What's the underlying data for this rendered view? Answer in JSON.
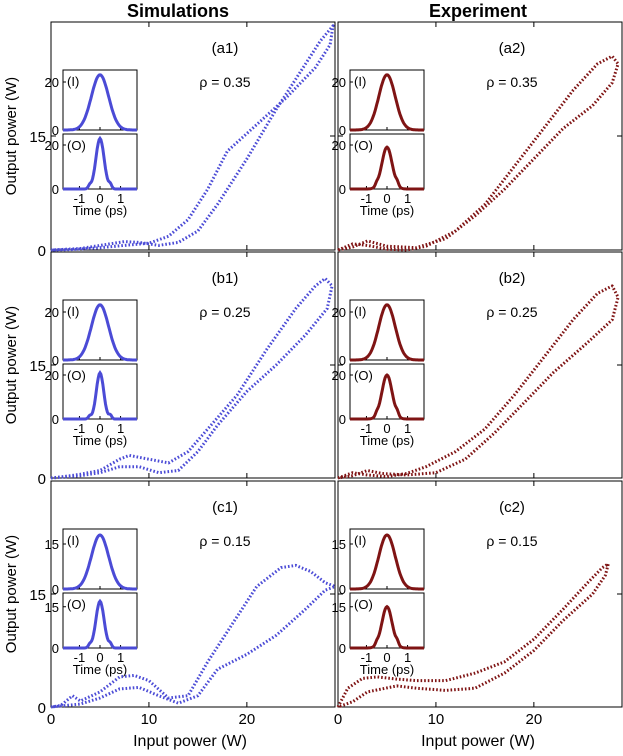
{
  "headers": {
    "left": "Simulations",
    "right": "Experiment"
  },
  "axis_labels": {
    "ylabel": "Output power (W)",
    "xlabel": "Input power (W)",
    "inset_xlabel": "Time (ps)"
  },
  "colors": {
    "simulation": "#4b4bd6",
    "experiment": "#7f1414",
    "axes": "#000000"
  },
  "chart_data": [
    {
      "id": "a1",
      "type": "line",
      "panel_label": "(a1)",
      "rho": "ρ = 0.35",
      "series_color": "simulation",
      "xlim": [
        0,
        29
      ],
      "ylim": [
        0,
        30
      ],
      "xticks": [
        0,
        10,
        20
      ],
      "yticks": [
        0,
        15
      ],
      "loop_path": [
        [
          0,
          0
        ],
        [
          3,
          0.2
        ],
        [
          6,
          0.8
        ],
        [
          7.5,
          1.1
        ],
        [
          9,
          1
        ],
        [
          11,
          0.6
        ],
        [
          13,
          1
        ],
        [
          15,
          2.5
        ],
        [
          17,
          6
        ],
        [
          20,
          12
        ],
        [
          23,
          18.5
        ],
        [
          25.5,
          23.5
        ],
        [
          27.5,
          27.5
        ],
        [
          28.8,
          29.5
        ],
        [
          28.5,
          27
        ],
        [
          27,
          24
        ],
        [
          24,
          20
        ],
        [
          21,
          16.5
        ],
        [
          18,
          13
        ],
        [
          16,
          8
        ],
        [
          14,
          4
        ],
        [
          12,
          1.8
        ],
        [
          10,
          0.9
        ],
        [
          7.5,
          0.6
        ],
        [
          5,
          0.3
        ],
        [
          2,
          0.05
        ],
        [
          0,
          0
        ]
      ],
      "inset_in": {
        "ylim": [
          0,
          25
        ],
        "yticks": [
          0,
          20
        ],
        "label": "(I)",
        "peak": 23,
        "width": 0.42
      },
      "inset_out": {
        "ylim": [
          0,
          25
        ],
        "yticks": [
          0,
          20
        ],
        "label": "(O)",
        "peak": 23,
        "width": 0.2
      }
    },
    {
      "id": "a2",
      "type": "line",
      "panel_label": "(a2)",
      "rho": "ρ = 0.35",
      "series_color": "experiment",
      "xlim": [
        0,
        29
      ],
      "ylim": [
        0,
        30
      ],
      "xticks": [
        0,
        10,
        20
      ],
      "yticks": [
        0,
        15
      ],
      "loop_path": [
        [
          0,
          0
        ],
        [
          1.5,
          0.8
        ],
        [
          3,
          0.6
        ],
        [
          5,
          0.1
        ],
        [
          7,
          0
        ],
        [
          9,
          0.5
        ],
        [
          12,
          2.5
        ],
        [
          15,
          6
        ],
        [
          18,
          11
        ],
        [
          21,
          16
        ],
        [
          24,
          21
        ],
        [
          26.5,
          24.5
        ],
        [
          28,
          25.5
        ],
        [
          28.6,
          24.5
        ],
        [
          28,
          22
        ],
        [
          26,
          19
        ],
        [
          23,
          16
        ],
        [
          20,
          12
        ],
        [
          17,
          8
        ],
        [
          14,
          4.5
        ],
        [
          11,
          1.5
        ],
        [
          8,
          0.3
        ],
        [
          5,
          0.5
        ],
        [
          3,
          1.2
        ],
        [
          1.5,
          0.4
        ],
        [
          0,
          0
        ]
      ],
      "inset_in": {
        "ylim": [
          0,
          25
        ],
        "yticks": [
          0,
          20
        ],
        "label": "(I)",
        "peak": 23,
        "width": 0.4
      },
      "inset_out": {
        "ylim": [
          0,
          25
        ],
        "yticks": [
          0,
          20
        ],
        "label": "(O)",
        "peak": 19,
        "width": 0.25
      }
    },
    {
      "id": "b1",
      "type": "line",
      "panel_label": "(b1)",
      "rho": "ρ = 0.25",
      "series_color": "simulation",
      "xlim": [
        0,
        29
      ],
      "ylim": [
        0,
        30
      ],
      "xticks": [
        0,
        10,
        20
      ],
      "yticks": [
        0,
        15
      ],
      "loop_path": [
        [
          0,
          0
        ],
        [
          2,
          0.3
        ],
        [
          3,
          0.5
        ],
        [
          5,
          1
        ],
        [
          7,
          2.5
        ],
        [
          8,
          3
        ],
        [
          10,
          2.5
        ],
        [
          12,
          2
        ],
        [
          14,
          3.5
        ],
        [
          16,
          6.5
        ],
        [
          19,
          11
        ],
        [
          22,
          17
        ],
        [
          25,
          22.5
        ],
        [
          27,
          25.5
        ],
        [
          28,
          26.5
        ],
        [
          28.7,
          25.5
        ],
        [
          28.2,
          22.5
        ],
        [
          26,
          19
        ],
        [
          23,
          15
        ],
        [
          20,
          11.5
        ],
        [
          17,
          7
        ],
        [
          15,
          3.5
        ],
        [
          13,
          1
        ],
        [
          11,
          0.7
        ],
        [
          9,
          1.5
        ],
        [
          7,
          1.5
        ],
        [
          5,
          0.7
        ],
        [
          3,
          0.3
        ],
        [
          0,
          0
        ]
      ],
      "inset_in": {
        "ylim": [
          0,
          25
        ],
        "yticks": [
          0,
          20
        ],
        "label": "(I)",
        "peak": 23,
        "width": 0.42
      },
      "inset_out": {
        "ylim": [
          0,
          25
        ],
        "yticks": [
          0,
          20
        ],
        "label": "(O)",
        "peak": 21,
        "width": 0.18
      }
    },
    {
      "id": "b2",
      "type": "line",
      "panel_label": "(b2)",
      "rho": "ρ = 0.25",
      "series_color": "experiment",
      "xlim": [
        0,
        29
      ],
      "ylim": [
        0,
        30
      ],
      "xticks": [
        0,
        10,
        20
      ],
      "yticks": [
        0,
        15
      ],
      "loop_path": [
        [
          0,
          0
        ],
        [
          1.5,
          0.7
        ],
        [
          3,
          0.4
        ],
        [
          5,
          0.2
        ],
        [
          7,
          0.6
        ],
        [
          9,
          1.5
        ],
        [
          12,
          3.5
        ],
        [
          15,
          6.5
        ],
        [
          18,
          11
        ],
        [
          21,
          16
        ],
        [
          24,
          21
        ],
        [
          26.5,
          24.5
        ],
        [
          28,
          25.5
        ],
        [
          28.6,
          24
        ],
        [
          28,
          21
        ],
        [
          25.5,
          18
        ],
        [
          22,
          14
        ],
        [
          19,
          10
        ],
        [
          16,
          6
        ],
        [
          13,
          2.5
        ],
        [
          10,
          0.7
        ],
        [
          7,
          0.4
        ],
        [
          4.5,
          0.6
        ],
        [
          3,
          1
        ],
        [
          1.5,
          0.3
        ],
        [
          0,
          0
        ]
      ],
      "inset_in": {
        "ylim": [
          0,
          25
        ],
        "yticks": [
          0,
          20
        ],
        "label": "(I)",
        "peak": 23,
        "width": 0.4
      },
      "inset_out": {
        "ylim": [
          0,
          25
        ],
        "yticks": [
          0,
          20
        ],
        "label": "(O)",
        "peak": 20,
        "width": 0.25
      }
    },
    {
      "id": "c1",
      "type": "line",
      "panel_label": "(c1)",
      "rho": "ρ = 0.15",
      "series_color": "simulation",
      "xlim": [
        0,
        29
      ],
      "ylim": [
        0,
        30
      ],
      "xticks": [
        0,
        10,
        20
      ],
      "yticks": [
        0,
        15
      ],
      "loop_path": [
        [
          0,
          0
        ],
        [
          1,
          0.2
        ],
        [
          2.2,
          1.5
        ],
        [
          3,
          0.8
        ],
        [
          5,
          2
        ],
        [
          7,
          4
        ],
        [
          8.5,
          4.2
        ],
        [
          10,
          3.5
        ],
        [
          12,
          1.2
        ],
        [
          14,
          1.5
        ],
        [
          16,
          6
        ],
        [
          18,
          10
        ],
        [
          21,
          16
        ],
        [
          23.5,
          18.5
        ],
        [
          25,
          18.8
        ],
        [
          26.5,
          18
        ],
        [
          28,
          16.5
        ],
        [
          29,
          16
        ],
        [
          28,
          15.5
        ],
        [
          26,
          13
        ],
        [
          23,
          9.5
        ],
        [
          20,
          7
        ],
        [
          17,
          5
        ],
        [
          15,
          1.5
        ],
        [
          13,
          0.5
        ],
        [
          11,
          1.5
        ],
        [
          9,
          2.6
        ],
        [
          7,
          2.4
        ],
        [
          5,
          1.2
        ],
        [
          3,
          0.4
        ],
        [
          0,
          0
        ]
      ],
      "inset_in": {
        "ylim": [
          0,
          20
        ],
        "yticks": [
          0,
          15
        ],
        "label": "(I)",
        "peak": 18,
        "width": 0.42
      },
      "inset_out": {
        "ylim": [
          0,
          20
        ],
        "yticks": [
          0,
          15
        ],
        "label": "(O)",
        "peak": 17,
        "width": 0.2
      }
    },
    {
      "id": "c2",
      "type": "line",
      "panel_label": "(c2)",
      "rho": "ρ = 0.15",
      "series_color": "experiment",
      "xlim": [
        0,
        29
      ],
      "ylim": [
        0,
        30
      ],
      "xticks": [
        0,
        10,
        20
      ],
      "yticks": [
        0,
        15
      ],
      "loop_path": [
        [
          0,
          0
        ],
        [
          1,
          2.5
        ],
        [
          2.5,
          3.8
        ],
        [
          4,
          4
        ],
        [
          6,
          3.7
        ],
        [
          8,
          3.5
        ],
        [
          11,
          3.5
        ],
        [
          14,
          4.5
        ],
        [
          17,
          6
        ],
        [
          20,
          9
        ],
        [
          23,
          13
        ],
        [
          25.5,
          16.5
        ],
        [
          27,
          18.5
        ],
        [
          27.6,
          19
        ],
        [
          27.3,
          17.5
        ],
        [
          26,
          15
        ],
        [
          23,
          11.5
        ],
        [
          20,
          7.5
        ],
        [
          17,
          4.5
        ],
        [
          14,
          2.5
        ],
        [
          11,
          2.2
        ],
        [
          8,
          2.5
        ],
        [
          6,
          2.8
        ],
        [
          3,
          2
        ],
        [
          1.5,
          0.7
        ],
        [
          0,
          0
        ]
      ],
      "inset_in": {
        "ylim": [
          0,
          20
        ],
        "yticks": [
          0,
          15
        ],
        "label": "(I)",
        "peak": 18,
        "width": 0.4
      },
      "inset_out": {
        "ylim": [
          0,
          20
        ],
        "yticks": [
          0,
          15
        ],
        "label": "(O)",
        "peak": 15,
        "width": 0.25
      }
    }
  ],
  "inset_time": {
    "xlim": [
      -1.8,
      1.8
    ],
    "xticks": [
      -1,
      0,
      1
    ]
  }
}
